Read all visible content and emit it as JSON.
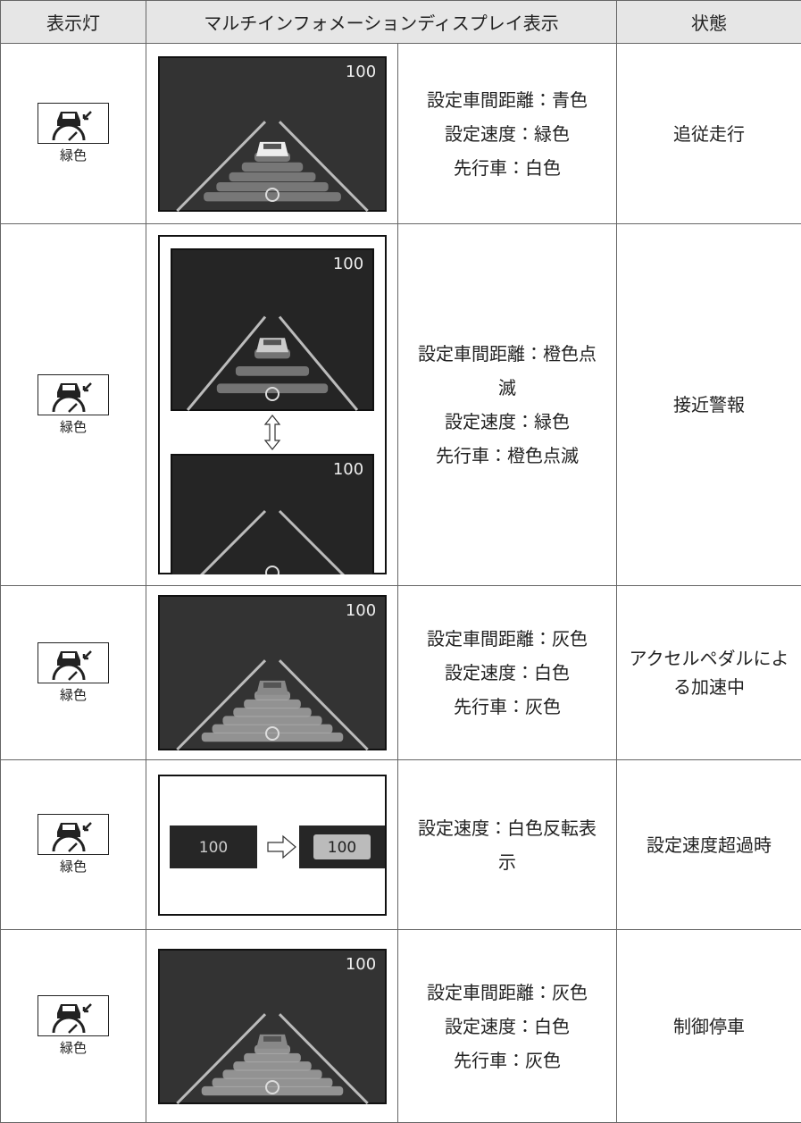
{
  "header": {
    "columns": [
      "表示灯",
      "マルチインフォメーションディスプレイ表示",
      "状態"
    ]
  },
  "rows": [
    {
      "indicator": "緑色",
      "screens": [
        "100"
      ],
      "description": [
        "設定車間距離：青色",
        "設定速度：緑色",
        "先行車：白色"
      ],
      "state": "追従走行"
    },
    {
      "indicator": "緑色",
      "screens": [
        "100",
        "100"
      ],
      "description": [
        "設定車間距離：橙色点滅",
        "設定速度：緑色",
        "先行車：橙色点滅"
      ],
      "state": "接近警報"
    },
    {
      "indicator": "緑色",
      "screens": [
        "100"
      ],
      "description": [
        "設定車間距離：灰色",
        "設定速度：白色",
        "先行車：灰色"
      ],
      "state": "アクセルペダルによる加速中"
    },
    {
      "indicator": "緑色",
      "screens": [
        "100",
        "100"
      ],
      "description": [
        "設定速度：白色反転表示"
      ],
      "state": "設定速度超過時"
    },
    {
      "indicator": "緑色",
      "screens": [
        "100"
      ],
      "description": [
        "設定車間距離：灰色",
        "設定速度：白色",
        "先行車：灰色"
      ],
      "state": "制御停車"
    }
  ]
}
